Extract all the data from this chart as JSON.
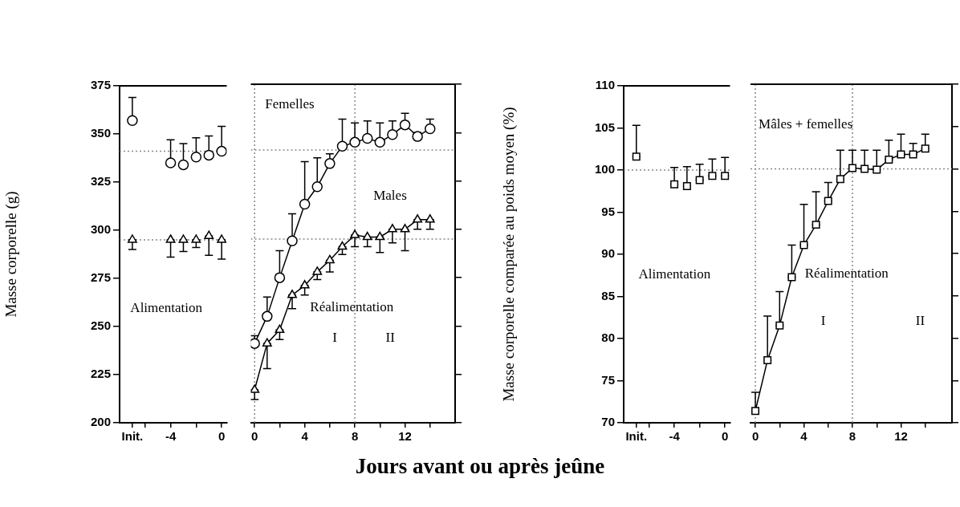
{
  "chart_data": [
    {
      "type": "line",
      "ylabel": "Masse corporelle (g)",
      "xlabel": "Jours avant ou après jeûne",
      "x": [
        -7,
        -4,
        -3,
        -2,
        -1,
        0
      ],
      "xlim": [
        -8,
        0.4
      ],
      "xticks": [
        {
          "value": -7,
          "label": "Init."
        },
        {
          "value": -6,
          "label": null
        },
        -4,
        {
          "value": -2,
          "label": null
        },
        0
      ],
      "ylim": [
        200,
        375
      ],
      "yticks": [
        200,
        225,
        250,
        275,
        300,
        325,
        350,
        375
      ],
      "series": [
        {
          "type": "scatter",
          "color": "#000000",
          "marker": "circle",
          "values": [
            357,
            335,
            334,
            338,
            339,
            341
          ],
          "errors": [
            [
              357,
              369
            ],
            [
              335,
              347
            ],
            [
              334,
              345
            ],
            [
              338,
              348
            ],
            [
              339,
              349
            ],
            [
              341,
              354
            ]
          ]
        },
        {
          "type": "scatter",
          "color": "#000000",
          "marker": "triangle",
          "values": [
            295,
            295,
            295,
            295,
            297,
            295
          ],
          "errors": [
            [
              290,
              295
            ],
            [
              286,
              295
            ],
            [
              289,
              295
            ],
            [
              291,
              295
            ],
            [
              287,
              297
            ],
            [
              285,
              295
            ]
          ]
        }
      ],
      "ref_lines": [
        {
          "axis": "y",
          "value": 341,
          "color": "#888888",
          "line_style": "dotted"
        },
        {
          "axis": "y",
          "value": 295,
          "color": "#888888",
          "line_style": "dotted"
        }
      ],
      "annotations": [
        "Alimentation"
      ]
    },
    {
      "type": "line",
      "x": [
        0,
        1,
        2,
        3,
        4,
        5,
        6,
        7,
        8,
        9,
        10,
        11,
        12,
        13,
        14
      ],
      "xlim": [
        -0.3,
        16
      ],
      "xticks": [
        0,
        {
          "value": 2,
          "label": null
        },
        4,
        {
          "value": 6,
          "label": null
        },
        8,
        {
          "value": 10,
          "label": null
        },
        12,
        {
          "value": 14,
          "label": null
        }
      ],
      "ylim": [
        200,
        375
      ],
      "yticks": [
        200,
        225,
        250,
        275,
        300,
        325,
        350,
        375
      ],
      "tick_labels": "x",
      "series": [
        {
          "type": "line",
          "name": "Femelles",
          "color": "#000000",
          "marker": "circle",
          "values": [
            241,
            255,
            275,
            294,
            313,
            322,
            334,
            343,
            345,
            347,
            345,
            349,
            354,
            348,
            352
          ],
          "errors": [
            [
              241,
              245
            ],
            [
              255,
              265
            ],
            [
              275,
              289
            ],
            [
              294,
              308
            ],
            [
              313,
              335
            ],
            [
              322,
              337
            ],
            [
              334,
              339
            ],
            [
              343,
              357
            ],
            [
              345,
              355
            ],
            [
              347,
              356
            ],
            [
              345,
              355
            ],
            [
              349,
              356
            ],
            [
              354,
              360
            ],
            [
              348,
              350
            ],
            [
              352,
              357
            ]
          ]
        },
        {
          "type": "line",
          "name": "Males",
          "color": "#000000",
          "marker": "triangle",
          "values": [
            217,
            241,
            248,
            266,
            271,
            278,
            284,
            291,
            297,
            296,
            296,
            300,
            300,
            305,
            305
          ],
          "errors": [
            [
              212,
              217
            ],
            [
              228,
              241
            ],
            [
              243,
              248
            ],
            [
              259,
              266
            ],
            [
              266,
              271
            ],
            [
              274,
              278
            ],
            [
              278,
              284
            ],
            [
              287,
              291
            ],
            [
              291,
              297
            ],
            [
              291,
              296
            ],
            [
              288,
              296
            ],
            [
              293,
              300
            ],
            [
              289,
              300
            ],
            [
              300,
              305
            ],
            [
              300,
              305
            ]
          ]
        }
      ],
      "ref_lines": [
        {
          "axis": "y",
          "value": 341,
          "color": "#888888",
          "line_style": "dotted"
        },
        {
          "axis": "y",
          "value": 295,
          "color": "#888888",
          "line_style": "dotted"
        },
        {
          "axis": "x",
          "value": 0,
          "color": "#888888",
          "line_style": "dotted"
        },
        {
          "axis": "x",
          "value": 8,
          "color": "#888888",
          "line_style": "dotted"
        }
      ],
      "annotations": [
        "Réalimentation",
        "I",
        "II"
      ]
    },
    {
      "type": "line",
      "ylabel": "Masse corporelle comparée au poids moyen (%)",
      "x": [
        -7,
        -4,
        -3,
        -2,
        -1,
        0
      ],
      "xlim": [
        -8,
        0.4
      ],
      "xticks": [
        {
          "value": -7,
          "label": "Init."
        },
        {
          "value": -6,
          "label": null
        },
        -4,
        {
          "value": -2,
          "label": null
        },
        0
      ],
      "ylim": [
        70,
        110
      ],
      "yticks": [
        70,
        75,
        80,
        85,
        90,
        95,
        100,
        105,
        110
      ],
      "series": [
        {
          "type": "scatter",
          "color": "#000000",
          "marker": "square",
          "values": [
            101.6,
            98.3,
            98.1,
            98.8,
            99.3,
            99.3
          ],
          "errors": [
            [
              101.6,
              105.3
            ],
            [
              98.3,
              100.3
            ],
            [
              98.1,
              100.4
            ],
            [
              98.8,
              100.7
            ],
            [
              99.3,
              101.3
            ],
            [
              99.3,
              101.5
            ]
          ]
        }
      ],
      "ref_lines": [
        {
          "axis": "y",
          "value": 100,
          "color": "#888888",
          "line_style": "dotted"
        }
      ],
      "annotations": [
        "Alimentation"
      ]
    },
    {
      "type": "line",
      "x": [
        0,
        1,
        2,
        3,
        4,
        5,
        6,
        7,
        8,
        9,
        10,
        11,
        12,
        13,
        14
      ],
      "xlim": [
        -0.4,
        16.2
      ],
      "xticks": [
        0,
        {
          "value": 2,
          "label": null
        },
        4,
        {
          "value": 6,
          "label": null
        },
        8,
        {
          "value": 10,
          "label": null
        },
        12,
        {
          "value": 14,
          "label": null
        }
      ],
      "ylim": [
        70,
        110
      ],
      "yticks": [
        70,
        75,
        80,
        85,
        90,
        95,
        100,
        105,
        110
      ],
      "tick_labels": "x",
      "series": [
        {
          "type": "line",
          "name": "Mâles + femelles",
          "color": "#000000",
          "marker": "square",
          "values": [
            71.4,
            77.4,
            81.5,
            87.2,
            91,
            93.4,
            96.2,
            98.8,
            100.1,
            100,
            99.9,
            101.1,
            101.7,
            101.7,
            102.4
          ],
          "errors": [
            [
              71.4,
              73.6
            ],
            [
              77.4,
              82.6
            ],
            [
              81.5,
              85.5
            ],
            [
              87.2,
              91
            ],
            [
              91,
              95.8
            ],
            [
              93.4,
              97.3
            ],
            [
              96.2,
              98.4
            ],
            [
              98.8,
              102.2
            ],
            [
              100.1,
              102.2
            ],
            [
              100,
              102.2
            ],
            [
              99.9,
              102.2
            ],
            [
              101.1,
              103.4
            ],
            [
              101.7,
              104.1
            ],
            [
              101.7,
              103
            ],
            [
              102.4,
              104.1
            ]
          ]
        }
      ],
      "ref_lines": [
        {
          "axis": "y",
          "value": 100,
          "color": "#888888",
          "line_style": "dotted"
        },
        {
          "axis": "x",
          "value": 0,
          "color": "#888888",
          "line_style": "dotted"
        },
        {
          "axis": "x",
          "value": 8,
          "color": "#888888",
          "line_style": "dotted"
        }
      ],
      "annotations": [
        "Réalimentation",
        "I",
        "II"
      ]
    }
  ]
}
